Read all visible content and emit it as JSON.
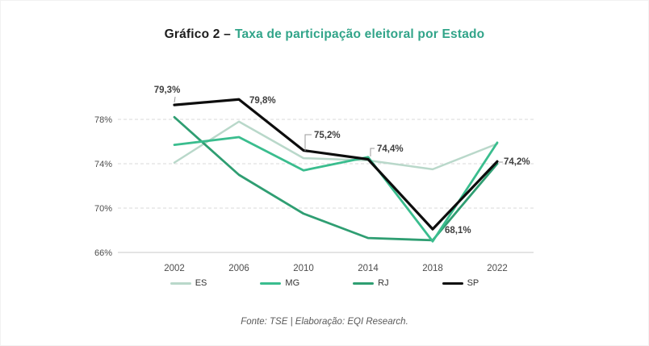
{
  "title": {
    "prefix": "Gráfico 2 –",
    "main": "Taxa de participação eleitoral por Estado"
  },
  "footer": "Fonte: TSE | Elaboração: EQI Research.",
  "chart_data": {
    "type": "line",
    "title": "Taxa de participação eleitoral por Estado",
    "x_categories": [
      "2002",
      "2006",
      "2010",
      "2014",
      "2018",
      "2022"
    ],
    "y_ticks": [
      {
        "value": 66,
        "label": "66%"
      },
      {
        "value": 70,
        "label": "70%"
      },
      {
        "value": 74,
        "label": "74%"
      },
      {
        "value": 78,
        "label": "78%"
      }
    ],
    "ylim": [
      66,
      81
    ],
    "grid": "horizontal-dashed",
    "legend_position": "bottom",
    "series": [
      {
        "name": "ES",
        "color": "#b9d8ca",
        "values": [
          74.1,
          77.8,
          74.5,
          74.3,
          73.5,
          75.8
        ]
      },
      {
        "name": "MG",
        "color": "#3abd8e",
        "values": [
          75.7,
          76.4,
          73.4,
          74.6,
          67.0,
          75.9
        ]
      },
      {
        "name": "RJ",
        "color": "#2f9e72",
        "values": [
          78.2,
          73.0,
          69.5,
          67.3,
          67.1,
          74.0
        ]
      },
      {
        "name": "SP",
        "color": "#0d0d0d",
        "values": [
          79.3,
          79.8,
          75.2,
          74.4,
          68.1,
          74.2
        ],
        "point_labels": [
          "79,3%",
          "79,8%",
          "75,2%",
          "74,4%",
          "68,1%",
          "74,2%"
        ]
      }
    ]
  },
  "colors": {
    "title_accent": "#31a489",
    "axis_text": "#4d4d4d",
    "label_text": "#3f3f3f",
    "grid": "#dadada",
    "axis_line": "#c9c9c9",
    "connector": "#9a9a9a",
    "footer_text": "#595959"
  }
}
